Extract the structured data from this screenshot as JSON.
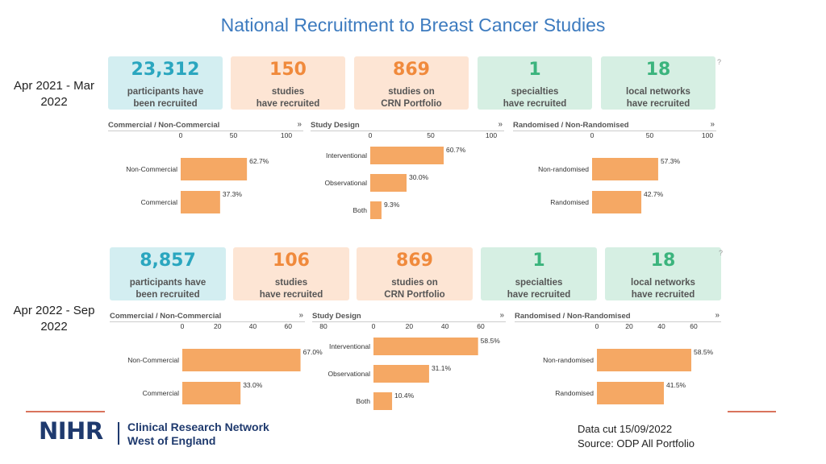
{
  "title": "National Recruitment to Breast Cancer Studies",
  "colors": {
    "bar": "#f5a864",
    "title": "#3d7bbf"
  },
  "periods": [
    {
      "label": "Apr 2021 - Mar 2022",
      "kpis": [
        {
          "value": "23,312",
          "line1": "participants have",
          "line2": "been recruited",
          "bg": "#d3eef1",
          "fg": "#2aa6bf"
        },
        {
          "value": "150",
          "line1": "studies",
          "line2": "have recruited",
          "bg": "#fde5d4",
          "fg": "#f08a3c"
        },
        {
          "value": "869",
          "line1": "studies on",
          "line2": "CRN Portfolio",
          "bg": "#fde5d4",
          "fg": "#f08a3c"
        },
        {
          "value": "1",
          "line1": "specialties",
          "line2": "have recruited",
          "bg": "#d6efe3",
          "fg": "#3bb47d"
        },
        {
          "value": "18",
          "line1": "local networks",
          "line2": "have recruited",
          "bg": "#d6efe3",
          "fg": "#3bb47d"
        }
      ],
      "help": "?",
      "charts": [
        {
          "title": "Commercial / Non-Commercial",
          "ticks": [
            "0",
            "50",
            "100"
          ],
          "max": 100,
          "bars": [
            {
              "label": "Non-Commercial",
              "value": 62.7,
              "text": "62.7%"
            },
            {
              "label": "Commercial",
              "value": 37.3,
              "text": "37.3%"
            }
          ]
        },
        {
          "title": "Study Design",
          "ticks": [
            "0",
            "50",
            "100"
          ],
          "max": 100,
          "bars": [
            {
              "label": "Interventional",
              "value": 60.7,
              "text": "60.7%"
            },
            {
              "label": "Observational",
              "value": 30.0,
              "text": "30.0%"
            },
            {
              "label": "Both",
              "value": 9.3,
              "text": "9.3%"
            }
          ]
        },
        {
          "title": "Randomised / Non-Randomised",
          "ticks": [
            "0",
            "50",
            "100"
          ],
          "max": 100,
          "bars": [
            {
              "label": "Non-randomised",
              "value": 57.3,
              "text": "57.3%"
            },
            {
              "label": "Randomised",
              "value": 42.7,
              "text": "42.7%"
            }
          ]
        }
      ]
    },
    {
      "label": "Apr 2022 - Sep 2022",
      "kpis": [
        {
          "value": "8,857",
          "line1": "participants have",
          "line2": "been recruited",
          "bg": "#d3eef1",
          "fg": "#2aa6bf"
        },
        {
          "value": "106",
          "line1": "studies",
          "line2": "have recruited",
          "bg": "#fde5d4",
          "fg": "#f08a3c"
        },
        {
          "value": "869",
          "line1": "studies on",
          "line2": "CRN Portfolio",
          "bg": "#fde5d4",
          "fg": "#f08a3c"
        },
        {
          "value": "1",
          "line1": "specialties",
          "line2": "have recruited",
          "bg": "#d6efe3",
          "fg": "#3bb47d"
        },
        {
          "value": "18",
          "line1": "local networks",
          "line2": "have recruited",
          "bg": "#d6efe3",
          "fg": "#3bb47d"
        }
      ],
      "help": "?",
      "charts": [
        {
          "title": "Commercial / Non-Commercial",
          "ticks": [
            "0",
            "20",
            "40",
            "60",
            "80"
          ],
          "max": 80,
          "bars": [
            {
              "label": "Non-Commercial",
              "value": 67.0,
              "text": "67.0%"
            },
            {
              "label": "Commercial",
              "value": 33.0,
              "text": "33.0%"
            }
          ]
        },
        {
          "title": "Study Design",
          "ticks": [
            "0",
            "20",
            "40",
            "60"
          ],
          "max": 60,
          "bars": [
            {
              "label": "Interventional",
              "value": 58.5,
              "text": "58.5%"
            },
            {
              "label": "Observational",
              "value": 31.1,
              "text": "31.1%"
            },
            {
              "label": "Both",
              "value": 10.4,
              "text": "10.4%"
            }
          ]
        },
        {
          "title": "Randomised / Non-Randomised",
          "ticks": [
            "0",
            "20",
            "40",
            "60"
          ],
          "max": 60,
          "bars": [
            {
              "label": "Non-randomised",
              "value": 58.5,
              "text": "58.5%"
            },
            {
              "label": "Randomised",
              "value": 41.5,
              "text": "41.5%"
            }
          ]
        }
      ]
    }
  ],
  "logo": {
    "brand": "NIHR",
    "line1": "Clinical Research Network",
    "line2": "West of England"
  },
  "footer": {
    "line1": "Data cut 15/09/2022",
    "line2": "Source: ODP All Portfolio"
  }
}
